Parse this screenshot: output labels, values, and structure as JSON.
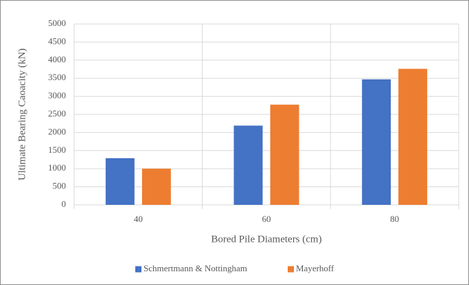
{
  "chart_data": {
    "type": "bar",
    "xlabel": "Bored Pile Diameters (cm)",
    "ylabel": "Ultimate Bearing Caoacity (kN)",
    "categories": [
      "40",
      "60",
      "80"
    ],
    "series": [
      {
        "name": "Schmertmann & Nottingham",
        "color": "#4472c4",
        "values": [
          1290,
          2190,
          3470
        ]
      },
      {
        "name": "Mayerhoff",
        "color": "#ed7d31",
        "values": [
          1000,
          2770,
          3760
        ]
      }
    ],
    "ylim": [
      0,
      5000
    ],
    "yticks": [
      0,
      500,
      1000,
      1500,
      2000,
      2500,
      3000,
      3500,
      4000,
      4500,
      5000
    ],
    "grid": true,
    "legend": "bottom"
  }
}
